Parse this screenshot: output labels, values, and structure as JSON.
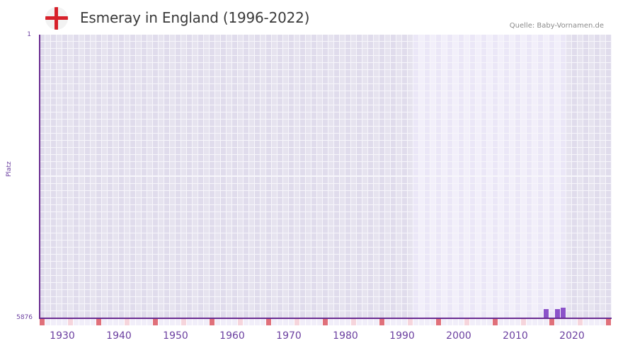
{
  "header": {
    "flag_icon": "england-flag-icon",
    "title": "Esmeray in England (1996-2022)",
    "source": "Quelle: Baby-Vornamen.de"
  },
  "colors": {
    "axis": "#6a2c91",
    "bar": "#8b52c9",
    "decade_marker": "#e0707a",
    "half_decade_marker": "#f6d5dc",
    "grid_dark": "#e2dfee",
    "grid_light": "#efecf8",
    "label": "#6b3fa0"
  },
  "chart_data": {
    "type": "bar",
    "title": "Esmeray in England (1996-2022)",
    "xlabel": "",
    "ylabel": "Platz",
    "y_inverted": true,
    "ylim": [
      5876,
      1
    ],
    "y_ticks": [
      "1",
      "5876"
    ],
    "xlim": [
      1928,
      2028
    ],
    "x_ticks": [
      "1930",
      "1940",
      "1950",
      "1960",
      "1970",
      "1980",
      "1990",
      "2000",
      "2010",
      "2020"
    ],
    "highlight_range": [
      1994,
      2020
    ],
    "categories": [
      "2017",
      "2019",
      "2020"
    ],
    "values": [
      5692,
      5680,
      5660
    ],
    "grid": true,
    "legend": "none"
  },
  "axis": {
    "y_top": "1",
    "y_bottom": "5876",
    "y_title": "Platz",
    "x_labels": [
      {
        "label": "1930",
        "year": 1930
      },
      {
        "label": "1940",
        "year": 1940
      },
      {
        "label": "1950",
        "year": 1950
      },
      {
        "label": "1960",
        "year": 1960
      },
      {
        "label": "1970",
        "year": 1970
      },
      {
        "label": "1980",
        "year": 1980
      },
      {
        "label": "1990",
        "year": 1990
      },
      {
        "label": "2000",
        "year": 2000
      },
      {
        "label": "2010",
        "year": 2010
      },
      {
        "label": "2020",
        "year": 2020
      }
    ]
  }
}
